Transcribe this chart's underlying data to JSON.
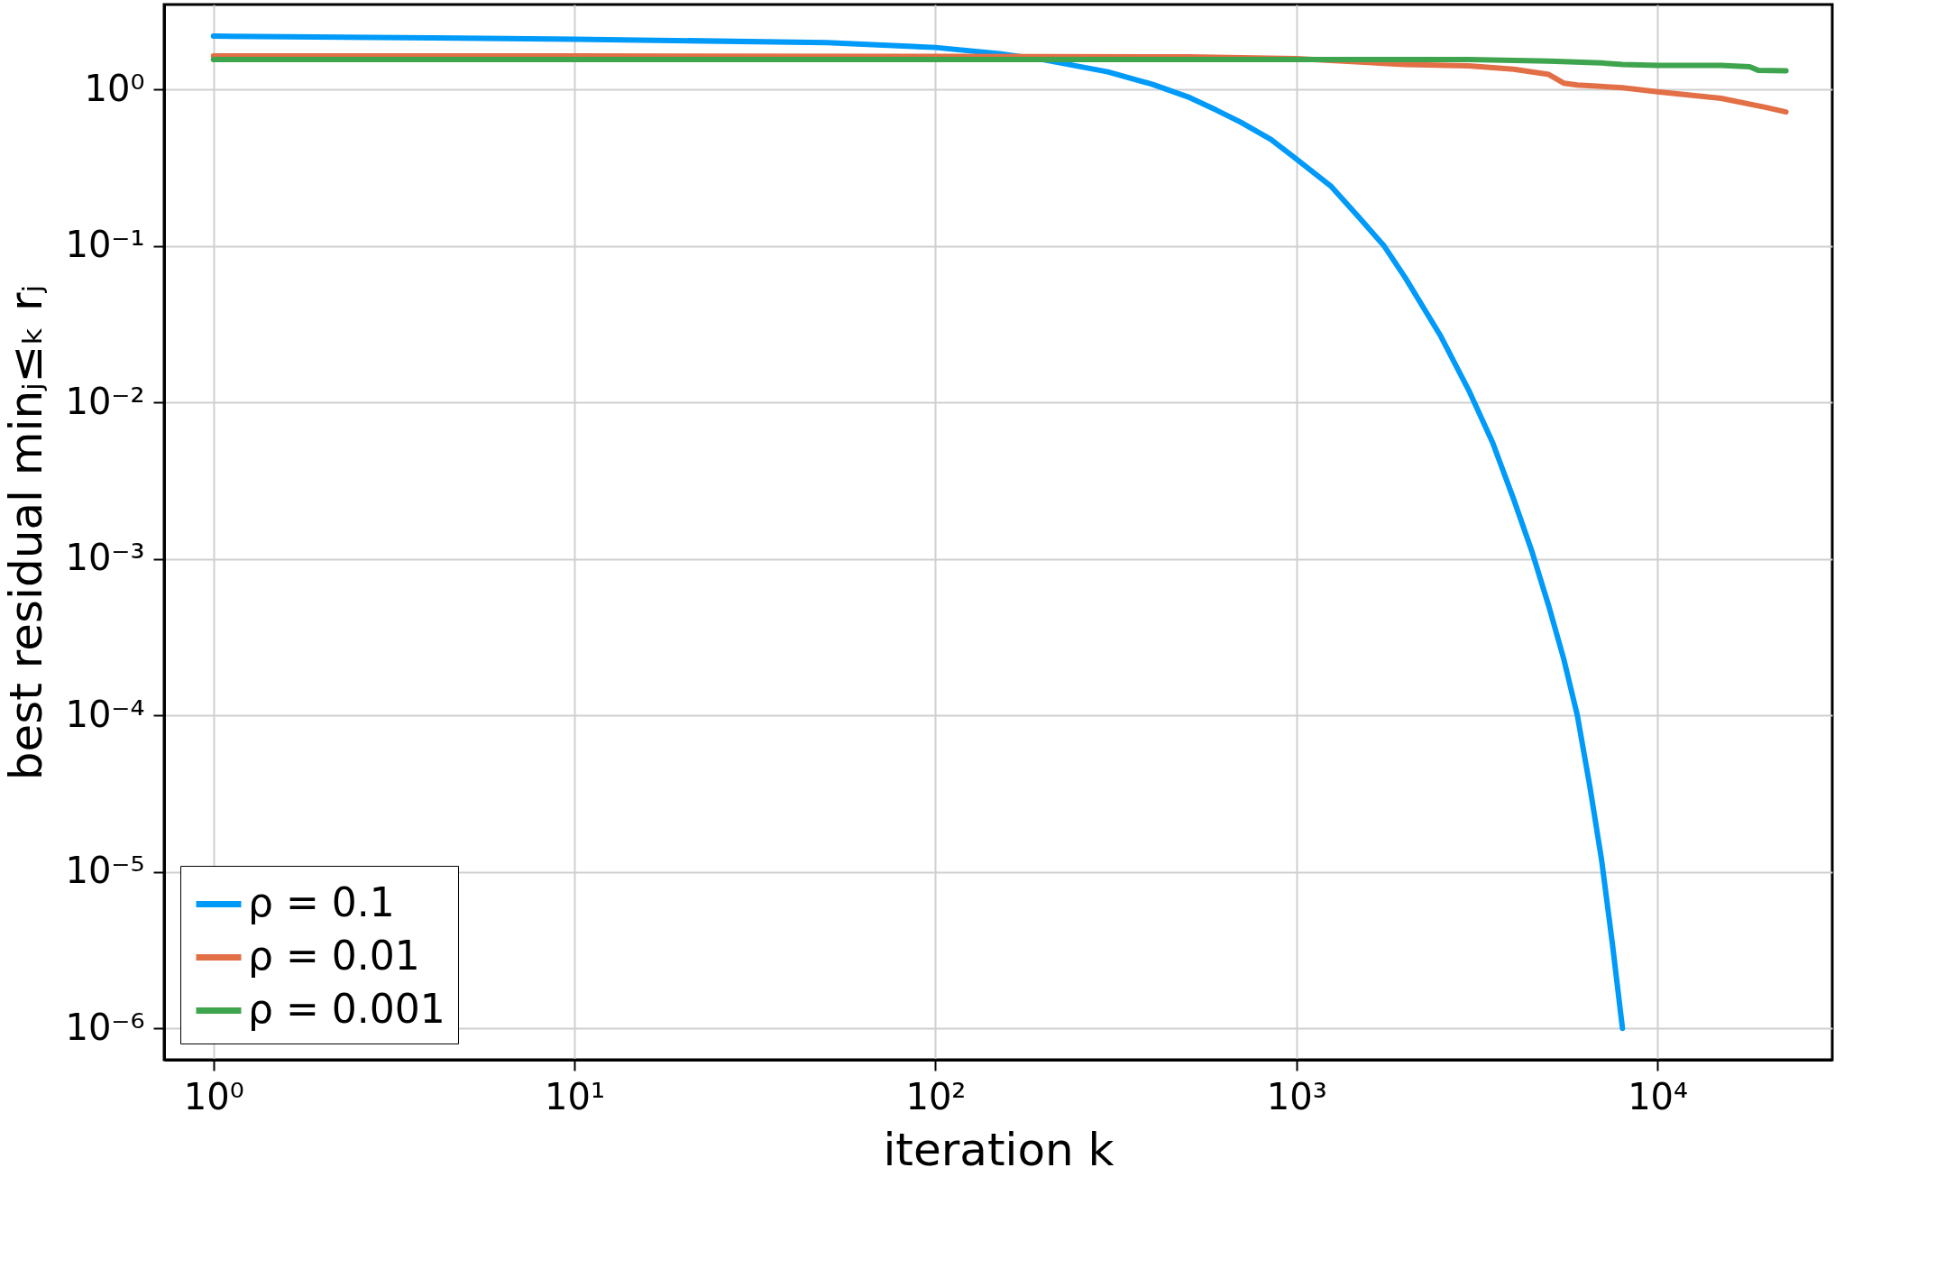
{
  "chart_data": {
    "type": "line",
    "xlabel": "iteration k",
    "ylabel": "best residual minⱼ≤ₖ rⱼ",
    "log": "xy",
    "grid": true,
    "legend": "bottom left",
    "line_style": "solid",
    "marker": "none",
    "xlim": [
      0.73,
      30500
    ],
    "ylim": [
      6.3e-07,
      3.5
    ],
    "xticks": [
      {
        "value": 1,
        "label": "10⁰"
      },
      {
        "value": 10,
        "label": "10¹"
      },
      {
        "value": 100,
        "label": "10²"
      },
      {
        "value": 1000,
        "label": "10³"
      },
      {
        "value": 10000,
        "label": "10⁴"
      }
    ],
    "yticks": [
      {
        "value": 1e-06,
        "label": "10⁻⁶"
      },
      {
        "value": 1e-05,
        "label": "10⁻⁵"
      },
      {
        "value": 0.0001,
        "label": "10⁻⁴"
      },
      {
        "value": 0.001,
        "label": "10⁻³"
      },
      {
        "value": 0.01,
        "label": "10⁻²"
      },
      {
        "value": 0.1,
        "label": "10⁻¹"
      },
      {
        "value": 1,
        "label": "10⁰"
      }
    ],
    "series": [
      {
        "name": "ρ = 0.1",
        "color": "#009af9",
        "x": [
          1,
          10,
          50,
          100,
          150,
          200,
          300,
          400,
          500,
          600,
          700,
          850,
          1000,
          1250,
          1500,
          1750,
          2000,
          2500,
          3000,
          3500,
          4000,
          4500,
          5000,
          5500,
          6000,
          6500,
          7000,
          7500,
          8000
        ],
        "values": [
          2.2,
          2.1,
          2.0,
          1.86,
          1.7,
          1.55,
          1.3,
          1.08,
          0.9,
          0.74,
          0.62,
          0.48,
          0.36,
          0.24,
          0.15,
          0.1,
          0.063,
          0.027,
          0.012,
          0.0055,
          0.0024,
          0.0011,
          0.0005,
          0.00023,
          0.0001,
          3.5e-05,
          1.2e-05,
          3.5e-06,
          1e-06
        ]
      },
      {
        "name": "ρ = 0.01",
        "color": "#e26f46",
        "x": [
          1,
          10,
          100,
          500,
          1000,
          1500,
          2000,
          3000,
          4000,
          5000,
          5500,
          6000,
          8000,
          10000,
          15000,
          20000,
          22700
        ],
        "values": [
          1.64,
          1.64,
          1.63,
          1.62,
          1.58,
          1.5,
          1.45,
          1.42,
          1.35,
          1.25,
          1.1,
          1.07,
          1.03,
          0.97,
          0.88,
          0.77,
          0.72
        ]
      },
      {
        "name": "ρ = 0.001",
        "color": "#3ea44e",
        "x": [
          1,
          10,
          100,
          1000,
          3000,
          5000,
          7000,
          8000,
          10000,
          15000,
          18000,
          19000,
          22700
        ],
        "values": [
          1.56,
          1.56,
          1.56,
          1.56,
          1.56,
          1.52,
          1.48,
          1.45,
          1.43,
          1.43,
          1.4,
          1.33,
          1.32
        ]
      }
    ]
  }
}
